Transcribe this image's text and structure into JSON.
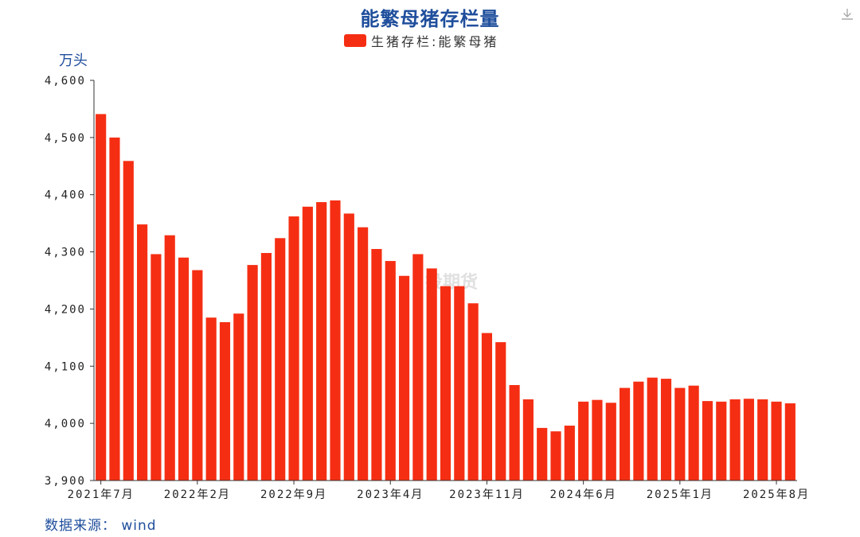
{
  "title": "能繁母猪存栏量",
  "legend": {
    "label": "生猪存栏:能繁母猪",
    "color": "#f52e13"
  },
  "unit_label": "万头",
  "source": "数据来源： wind",
  "watermark": "投期货",
  "toolbar": {
    "download_icon": "download-icon"
  },
  "chart_data": {
    "type": "bar",
    "title": "能繁母猪存栏量",
    "ylabel": "万头",
    "xlabel": "",
    "ylim": [
      3900,
      4600
    ],
    "yticks": [
      3900,
      4000,
      4100,
      4200,
      4300,
      4400,
      4500,
      4600
    ],
    "ytick_labels": [
      "3,900",
      "4,000",
      "4,100",
      "4,200",
      "4,300",
      "4,400",
      "4,500",
      "4,600"
    ],
    "x_tick_labels": [
      {
        "index": 0,
        "label": "2021年7月"
      },
      {
        "index": 7,
        "label": "2022年2月"
      },
      {
        "index": 14,
        "label": "2022年9月"
      },
      {
        "index": 21,
        "label": "2023年4月"
      },
      {
        "index": 28,
        "label": "2023年11月"
      },
      {
        "index": 35,
        "label": "2024年6月"
      },
      {
        "index": 42,
        "label": "2025年1月"
      },
      {
        "index": 49,
        "label": "2025年8月"
      }
    ],
    "categories": [
      "2021-07",
      "2021-08",
      "2021-09",
      "2021-10",
      "2021-11",
      "2021-12",
      "2022-01",
      "2022-02",
      "2022-03",
      "2022-04",
      "2022-05",
      "2022-06",
      "2022-07",
      "2022-08",
      "2022-09",
      "2022-10",
      "2022-11",
      "2022-12",
      "2023-01",
      "2023-02",
      "2023-03",
      "2023-04",
      "2023-05",
      "2023-06",
      "2023-07",
      "2023-08",
      "2023-09",
      "2023-10",
      "2023-11",
      "2023-12",
      "2024-01",
      "2024-02",
      "2024-03",
      "2024-04",
      "2024-05",
      "2024-06",
      "2024-07",
      "2024-08",
      "2024-09",
      "2024-10",
      "2024-11",
      "2024-12",
      "2025-01",
      "2025-02",
      "2025-03",
      "2025-04",
      "2025-05",
      "2025-06",
      "2025-07",
      "2025-08",
      "2025-09"
    ],
    "series": [
      {
        "name": "生猪存栏:能繁母猪",
        "color": "#f52e13",
        "values": [
          4541,
          4500,
          4459,
          4348,
          4296,
          4329,
          4290,
          4268,
          4185,
          4177,
          4192,
          4277,
          4298,
          4324,
          4362,
          4379,
          4387,
          4390,
          4367,
          4343,
          4305,
          4284,
          4258,
          4296,
          4271,
          4240,
          4240,
          4210,
          4158,
          4142,
          4067,
          4042,
          3992,
          3986,
          3996,
          4038,
          4041,
          4036,
          4062,
          4073,
          4080,
          4078,
          4062,
          4066,
          4039,
          4038,
          4042,
          4043,
          4042,
          4038,
          4035
        ]
      }
    ],
    "grid": false,
    "legend_position": "top-center"
  }
}
